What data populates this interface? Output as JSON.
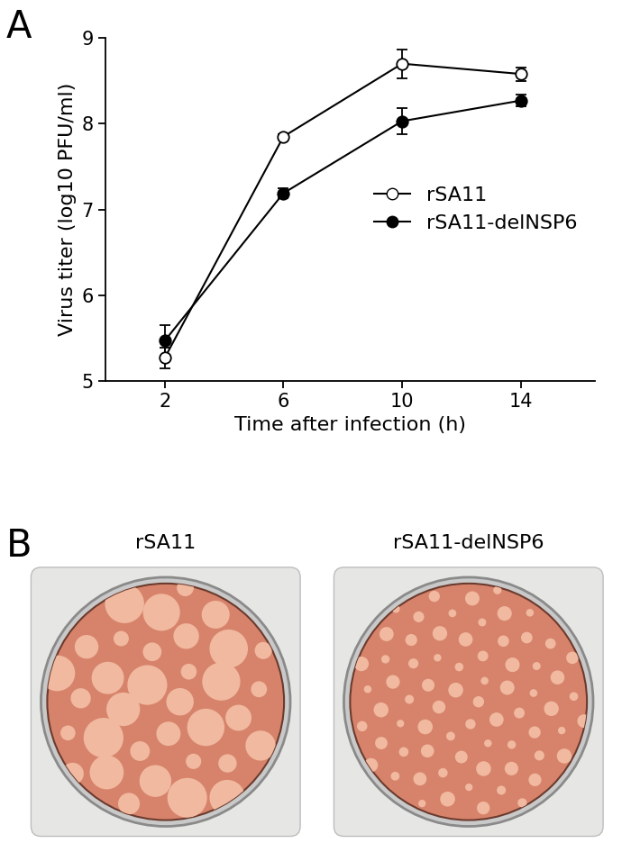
{
  "panels": [
    "A",
    "B"
  ],
  "chart_data": {
    "type": "line",
    "x_label": "Time after infection (h)",
    "y_label": "Virus titer (log10 PFU/ml)",
    "x": [
      2,
      6,
      10,
      14
    ],
    "xlim": [
      0,
      16.5
    ],
    "xticks": [
      2,
      6,
      10,
      14
    ],
    "ylim": [
      5,
      9
    ],
    "yticks": [
      5,
      6,
      7,
      8,
      9
    ],
    "legend": "center right",
    "grid": false,
    "series": [
      {
        "name": "rSA11",
        "color": "white",
        "marker": "o",
        "line_style": "solid",
        "values": [
          5.27,
          7.85,
          8.7,
          8.58
        ],
        "error": [
          0.12,
          0.03,
          0.17,
          0.08
        ]
      },
      {
        "name": "rSA11-delNSP6",
        "color": "black",
        "marker": "o",
        "line_style": "solid",
        "values": [
          5.47,
          7.19,
          8.03,
          8.27
        ],
        "error": [
          0.18,
          0.06,
          0.15,
          0.07
        ]
      }
    ]
  },
  "plates": [
    "rSA11",
    "rSA11-delNSP6"
  ]
}
